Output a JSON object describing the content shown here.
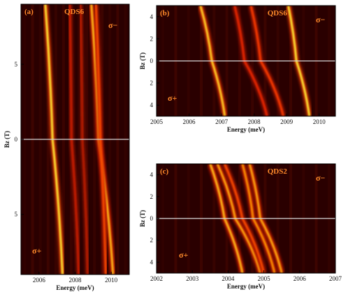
{
  "chart_data": [
    {
      "type": "heatmap",
      "panel_label": "(a)",
      "sample_label": "QDS6",
      "polarization_top": "σ−",
      "polarization_bottom": "σ+",
      "xlabel": "Energy (meV)",
      "ylabel": "Bz (T)",
      "xlim": [
        2005,
        2011
      ],
      "xticks": [
        "2006",
        "2008",
        "2010"
      ],
      "yticks": [
        "5",
        "0",
        "5"
      ],
      "ytick_values": [
        5,
        0,
        -5
      ],
      "ylim": [
        -9,
        9
      ],
      "lines": [
        {
          "x_top": 2006.35,
          "x_zero": 2006.75,
          "x_bottom": 2007.3,
          "intensity": 1.0
        },
        {
          "x_top": 2008.9,
          "x_zero": 2009.3,
          "x_bottom": 2010.1,
          "intensity": 0.9
        },
        {
          "x_top": 2009.15,
          "x_zero": 2009.4,
          "x_bottom": 2009.7,
          "intensity": 0.6
        },
        {
          "x_top": 2007.7,
          "x_zero": 2007.8,
          "x_bottom": 2008.2,
          "intensity": 0.35
        },
        {
          "x_top": 2008.3,
          "x_zero": 2008.4,
          "x_bottom": 2008.7,
          "intensity": 0.3
        }
      ]
    },
    {
      "type": "heatmap",
      "panel_label": "(b)",
      "sample_label": "QDS6",
      "polarization_top": "σ−",
      "polarization_bottom": "σ+",
      "xlabel": "Energy (meV)",
      "ylabel": "Bz (T)",
      "xlim": [
        2005,
        2010.5
      ],
      "xticks": [
        "2005",
        "2006",
        "2007",
        "2008",
        "2009",
        "2010"
      ],
      "tick_values": [
        2005,
        2006,
        2007,
        2008,
        2009,
        2010
      ],
      "yticks": [
        "4",
        "2",
        "0",
        "2",
        "4"
      ],
      "ytick_values": [
        4,
        2,
        0,
        -2,
        -4
      ],
      "ylim": [
        -5,
        5
      ],
      "lines": [
        {
          "x_top": 2006.35,
          "x_zero": 2006.7,
          "x_bottom": 2007.1,
          "intensity": 0.95
        },
        {
          "x_top": 2009.05,
          "x_zero": 2009.3,
          "x_bottom": 2009.7,
          "intensity": 1.0
        },
        {
          "x_top": 2007.9,
          "x_zero": 2008.2,
          "x_bottom": 2008.9,
          "intensity": 0.55
        },
        {
          "x_top": 2007.4,
          "x_zero": 2007.7,
          "x_bottom": 2008.4,
          "intensity": 0.45
        }
      ]
    },
    {
      "type": "heatmap",
      "panel_label": "(c)",
      "sample_label": "QDS2",
      "polarization_top": "σ−",
      "polarization_bottom": "σ+",
      "xlabel": "Energy (meV)",
      "ylabel": "Bz (T)",
      "xlim": [
        2002,
        2007
      ],
      "xticks": [
        "2002",
        "2003",
        "2004",
        "2005",
        "2006",
        "2007"
      ],
      "tick_values": [
        2002,
        2003,
        2004,
        2005,
        2006,
        2007
      ],
      "yticks": [
        "4",
        "2",
        "0",
        "2",
        "4"
      ],
      "ytick_values": [
        4,
        2,
        0,
        -2,
        -4
      ],
      "ylim": [
        -5,
        5
      ],
      "lines": [
        {
          "x_top": 2003.5,
          "x_zero": 2003.9,
          "x_bottom": 2004.4,
          "intensity": 0.9
        },
        {
          "x_top": 2003.7,
          "x_zero": 2004.2,
          "x_bottom": 2004.9,
          "intensity": 0.85
        },
        {
          "x_top": 2004.4,
          "x_zero": 2004.7,
          "x_bottom": 2005.3,
          "intensity": 0.8
        },
        {
          "x_top": 2004.6,
          "x_zero": 2004.9,
          "x_bottom": 2005.5,
          "intensity": 0.85
        },
        {
          "x_top": 2003.9,
          "x_zero": 2004.4,
          "x_bottom": 2005.0,
          "intensity": 0.6
        }
      ]
    }
  ]
}
